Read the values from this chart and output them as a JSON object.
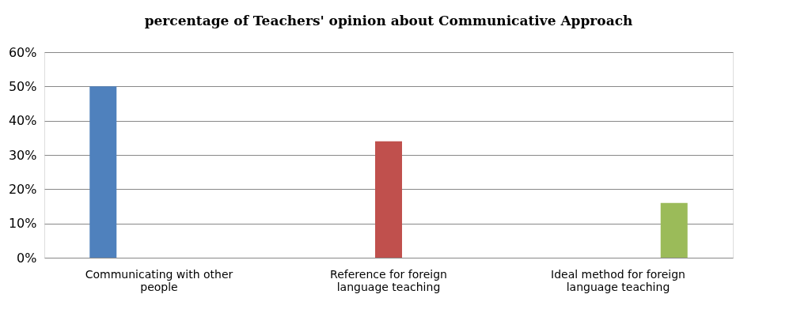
{
  "chart_data": {
    "type": "bar",
    "title": "percentage of Teachers' opinion about Communicative Approach",
    "categories": [
      "Communicating with other people",
      "Reference for foreign language teaching",
      "Ideal method for foreign language teaching"
    ],
    "series": [
      {
        "color": "#4f81bd",
        "values": [
          50,
          null,
          null
        ]
      },
      {
        "color": "#c0504d",
        "values": [
          null,
          34,
          null
        ]
      },
      {
        "color": "#9bbb59",
        "values": [
          null,
          null,
          16
        ]
      }
    ],
    "ylim": [
      0,
      60
    ],
    "yticks": [
      {
        "value": 0,
        "label": "0%"
      },
      {
        "value": 10,
        "label": "10%"
      },
      {
        "value": 20,
        "label": "20%"
      },
      {
        "value": 30,
        "label": "30%"
      },
      {
        "value": 40,
        "label": "40%"
      },
      {
        "value": 50,
        "label": "50%"
      },
      {
        "value": 60,
        "label": "60%"
      }
    ],
    "grid": "y",
    "legend": false
  }
}
